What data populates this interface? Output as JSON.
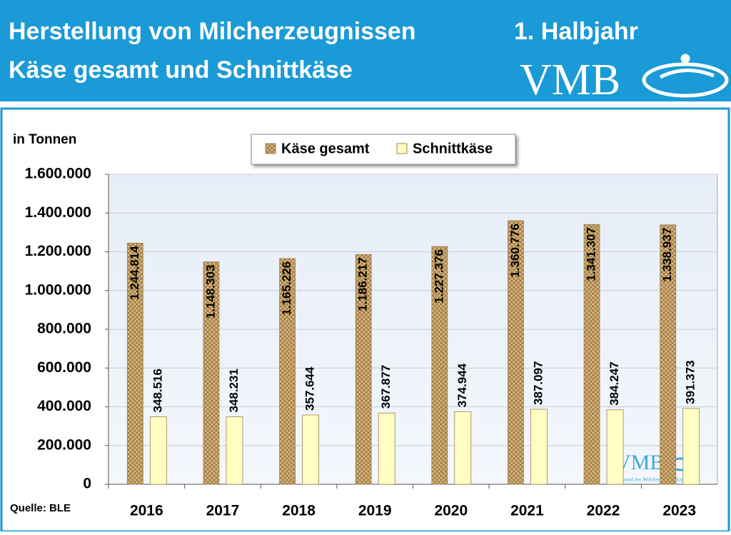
{
  "header": {
    "title": "Herstellung von Milcherzeugnissen",
    "subtitle": "Käse gesamt und Schnittkäse",
    "period": "1. Halbjahr",
    "logo": "VMB"
  },
  "chart_data": {
    "type": "bar",
    "y_label": "in Tonnen",
    "source": "Quelle: BLE",
    "watermark": {
      "logo": "VMB",
      "text": "Verband der Milcherzeuger Bayern e.V."
    },
    "categories": [
      "2016",
      "2017",
      "2018",
      "2019",
      "2020",
      "2021",
      "2022",
      "2023"
    ],
    "series": [
      {
        "name": "Käse gesamt",
        "color": "#d8b47a",
        "pattern": "crosshatch",
        "values": [
          1244814,
          1148303,
          1165226,
          1186217,
          1227376,
          1360776,
          1341307,
          1338937
        ],
        "value_labels": [
          "1.244.814",
          "1.148.303",
          "1.165.226",
          "1.186.217",
          "1.227.376",
          "1.360.776",
          "1.341.307",
          "1.338.937"
        ]
      },
      {
        "name": "Schnittkäse",
        "color": "#ffffc4",
        "values": [
          348516,
          348231,
          357644,
          367877,
          374944,
          387097,
          384247,
          391373
        ],
        "value_labels": [
          "348.516",
          "348.231",
          "357.644",
          "367.877",
          "374.944",
          "387.097",
          "384.247",
          "391.373"
        ]
      }
    ],
    "ylim": [
      0,
      1600000
    ],
    "yticks": [
      0,
      {
        "value": 200000,
        "label": "200.000"
      },
      {
        "value": 400000,
        "label": "400.000"
      },
      {
        "value": 600000,
        "label": "600.000"
      },
      {
        "value": 800000,
        "label": "800.000"
      },
      {
        "value": 1000000,
        "label": "1.000.000"
      },
      {
        "value": 1200000,
        "label": "1.200.000"
      },
      {
        "value": 1400000,
        "label": "1.400.000"
      },
      {
        "value": 1600000,
        "label": "1.600.000"
      }
    ],
    "grid": true,
    "legend": "top"
  }
}
